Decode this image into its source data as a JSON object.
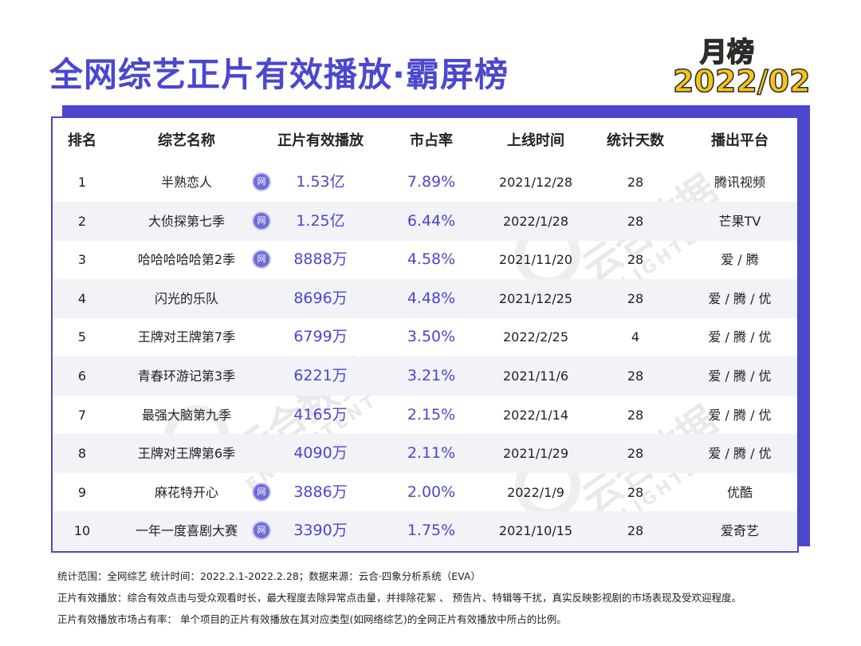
{
  "title": "全网综艺正片有效播放·霸屏榜",
  "badge": {
    "month": "月榜",
    "year": "2022/02"
  },
  "watermark": {
    "cn": "云合数据",
    "en": "ENLIGHTENT"
  },
  "columns": [
    "排名",
    "综艺名称",
    "正片有效播放",
    "市占率",
    "上线时间",
    "统计天数",
    "播出平台"
  ],
  "net_icon_label": "网",
  "rows": [
    {
      "rank": "1",
      "name": "半熟恋人",
      "play": "1.53亿",
      "share": "7.89%",
      "date": "2021/12/28",
      "days": "28",
      "platform": "腾讯视频",
      "net": true
    },
    {
      "rank": "2",
      "name": "大侦探第七季",
      "play": "1.25亿",
      "share": "6.44%",
      "date": "2022/1/28",
      "days": "28",
      "platform": "芒果TV",
      "net": true
    },
    {
      "rank": "3",
      "name": "哈哈哈哈哈第2季",
      "play": "8888万",
      "share": "4.58%",
      "date": "2021/11/20",
      "days": "28",
      "platform": "爱 / 腾",
      "net": true
    },
    {
      "rank": "4",
      "name": "闪光的乐队",
      "play": "8696万",
      "share": "4.48%",
      "date": "2021/12/25",
      "days": "28",
      "platform": "爱 / 腾 / 优",
      "net": false
    },
    {
      "rank": "5",
      "name": "王牌对王牌第7季",
      "play": "6799万",
      "share": "3.50%",
      "date": "2022/2/25",
      "days": "4",
      "platform": "爱 / 腾 / 优",
      "net": false
    },
    {
      "rank": "6",
      "name": "青春环游记第3季",
      "play": "6221万",
      "share": "3.21%",
      "date": "2021/11/6",
      "days": "28",
      "platform": "爱 / 腾 / 优",
      "net": false
    },
    {
      "rank": "7",
      "name": "最强大脑第九季",
      "play": "4165万",
      "share": "2.15%",
      "date": "2022/1/14",
      "days": "28",
      "platform": "爱 / 腾 / 优",
      "net": false
    },
    {
      "rank": "8",
      "name": "王牌对王牌第6季",
      "play": "4090万",
      "share": "2.11%",
      "date": "2021/1/29",
      "days": "28",
      "platform": "爱 / 腾 / 优",
      "net": false
    },
    {
      "rank": "9",
      "name": "麻花特开心",
      "play": "3886万",
      "share": "2.00%",
      "date": "2022/1/9",
      "days": "28",
      "platform": "优酷",
      "net": true
    },
    {
      "rank": "10",
      "name": "一年一度喜剧大赛",
      "play": "3390万",
      "share": "1.75%",
      "date": "2021/10/15",
      "days": "28",
      "platform": "爱奇艺",
      "net": true
    }
  ],
  "footer": [
    "统计范围：全网综艺      统计时间：2022.2.1-2022.2.28；数据来源：云合·四象分析系统（EVA）",
    "正片有效播放：综合有效点击与受众观看时长，最大程度去除异常点击量，并排除花絮 、 预告片、特辑等干扰，真实反映影视剧的市场表现及受欢迎程度。",
    "正片有效播放市场占有率： 单个项目的正片有效播放在其对应类型(如网络综艺)的全网正片有效播放中所占的比例。"
  ]
}
